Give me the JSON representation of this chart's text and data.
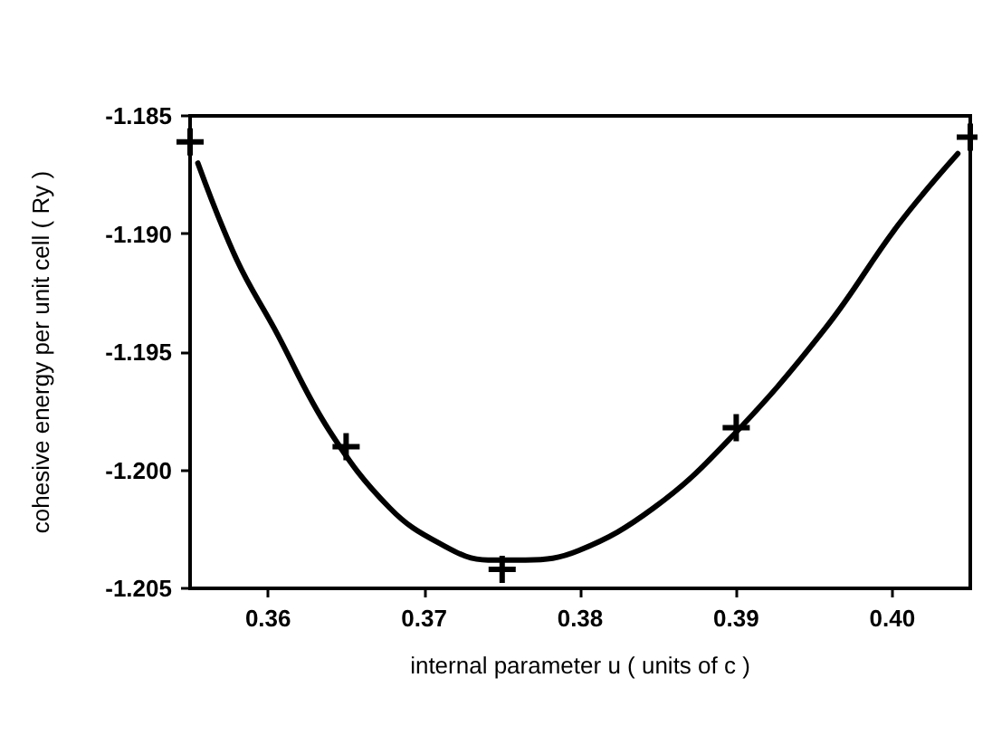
{
  "chart_data": {
    "type": "scatter",
    "xlabel": "internal parameter u ( units of c )",
    "ylabel": "cohesive energy per unit cell ( Ry )",
    "x": [
      0.355,
      0.365,
      0.375,
      0.39,
      0.405
    ],
    "series": [
      {
        "color": "#000000",
        "values": [
          -1.1861,
          -1.199,
          -1.2042,
          -1.1982,
          -1.1859
        ]
      },
      {
        "type": "line",
        "color": "#000000",
        "marker": "none",
        "x": [
          0.3555,
          0.358,
          0.3604,
          0.3639,
          0.3678,
          0.371,
          0.3741,
          0.3765,
          0.3799,
          0.3847,
          0.3894,
          0.3957,
          0.4004,
          0.4042
        ],
        "values": [
          -1.187,
          -1.1911,
          -1.194,
          -1.1983,
          -1.2016,
          -1.2031,
          -1.2038,
          -1.2038,
          -1.2034,
          -1.2016,
          -1.1988,
          -1.194,
          -1.1896,
          -1.1866
        ]
      }
    ],
    "marker": "cross",
    "line_style": "solid",
    "xlim": [
      0.355,
      0.405
    ],
    "xticks": [
      0.36,
      0.37,
      0.38,
      0.39,
      {
        "value": 0.4,
        "label": "0.40"
      }
    ],
    "ylim": [
      -1.205,
      -1.185
    ],
    "yticks": [
      -1.185,
      {
        "value": -1.19,
        "label": "-1.190"
      },
      -1.195,
      {
        "value": -1.2,
        "label": "-1.200"
      },
      -1.205
    ],
    "grid": false
  }
}
